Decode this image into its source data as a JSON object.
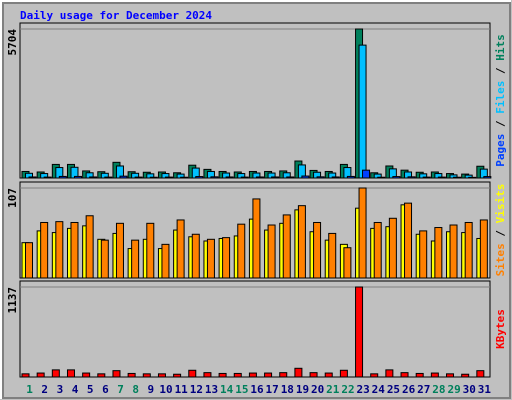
{
  "title": "Daily usage for December 2024",
  "legend_separator": "/",
  "categories": [
    "1",
    "2",
    "3",
    "4",
    "5",
    "6",
    "7",
    "8",
    "9",
    "10",
    "11",
    "12",
    "13",
    "14",
    "15",
    "16",
    "17",
    "18",
    "19",
    "20",
    "21",
    "22",
    "23",
    "24",
    "25",
    "26",
    "27",
    "28",
    "29",
    "30",
    "31"
  ],
  "category_colors": [
    "#00805c",
    "#000080",
    "#000080",
    "#000080",
    "#000080",
    "#000080",
    "#00805c",
    "#00805c",
    "#000080",
    "#000080",
    "#000080",
    "#000080",
    "#000080",
    "#00805c",
    "#00805c",
    "#000080",
    "#000080",
    "#000080",
    "#000080",
    "#000080",
    "#00805c",
    "#00805c",
    "#000080",
    "#000080",
    "#000080",
    "#000080",
    "#000080",
    "#00805c",
    "#00805c",
    "#000080",
    "#000080"
  ],
  "chart_data": [
    {
      "type": "bar",
      "ylim": [
        0,
        5704
      ],
      "yticks": [
        5704
      ],
      "series": [
        {
          "name": "Hits",
          "color": "#00805c",
          "values": [
            250,
            230,
            520,
            520,
            270,
            240,
            600,
            240,
            220,
            230,
            200,
            490,
            330,
            250,
            230,
            250,
            250,
            270,
            650,
            290,
            250,
            520,
            5704,
            200,
            460,
            300,
            220,
            230,
            170,
            150,
            450
          ]
        },
        {
          "name": "Files",
          "color": "#00c0ff",
          "values": [
            180,
            170,
            400,
            410,
            200,
            180,
            460,
            180,
            160,
            170,
            150,
            380,
            250,
            190,
            170,
            190,
            190,
            200,
            500,
            220,
            190,
            400,
            5087,
            150,
            350,
            230,
            160,
            170,
            120,
            110,
            340
          ]
        },
        {
          "name": "Pages",
          "color": "#0040ff",
          "values": [
            40,
            35,
            60,
            60,
            40,
            35,
            70,
            35,
            30,
            35,
            30,
            55,
            45,
            40,
            35,
            40,
            40,
            40,
            75,
            45,
            40,
            60,
            300,
            30,
            55,
            45,
            35,
            35,
            30,
            25,
            55
          ]
        }
      ]
    },
    {
      "type": "bar",
      "ylim": [
        0,
        107
      ],
      "yticks": [
        107
      ],
      "series": [
        {
          "name": "Visits",
          "color": "#ffff00",
          "values": [
            42,
            56,
            54,
            59,
            62,
            46,
            53,
            35,
            46,
            35,
            57,
            49,
            44,
            47,
            50,
            70,
            57,
            65,
            81,
            55,
            45,
            40,
            83,
            59,
            61,
            87,
            52,
            44,
            55,
            54,
            47
          ]
        },
        {
          "name": "Sites",
          "color": "#ff8000",
          "values": [
            42,
            66,
            67,
            66,
            74,
            45,
            65,
            45,
            65,
            40,
            69,
            52,
            46,
            48,
            64,
            94,
            63,
            75,
            86,
            66,
            53,
            36,
            107,
            66,
            71,
            89,
            56,
            60,
            63,
            66,
            69
          ]
        }
      ]
    },
    {
      "type": "bar",
      "ylim": [
        0,
        1137
      ],
      "yticks": [
        1137
      ],
      "series": [
        {
          "name": "KBytes",
          "color": "#ff0000",
          "values": [
            40,
            50,
            90,
            90,
            50,
            40,
            80,
            45,
            40,
            40,
            35,
            85,
            55,
            45,
            45,
            50,
            50,
            55,
            110,
            55,
            50,
            85,
            1137,
            40,
            90,
            55,
            45,
            50,
            40,
            35,
            80
          ]
        }
      ]
    }
  ]
}
